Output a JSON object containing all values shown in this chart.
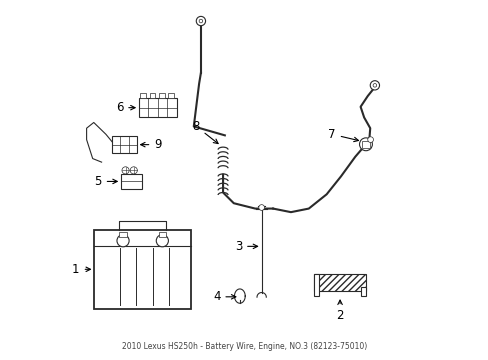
{
  "bg_color": "#ffffff",
  "line_color": "#2a2a2a",
  "label_color": "#000000",
  "lw_main": 1.3,
  "lw_thin": 0.8,
  "lw_wire": 1.5
}
